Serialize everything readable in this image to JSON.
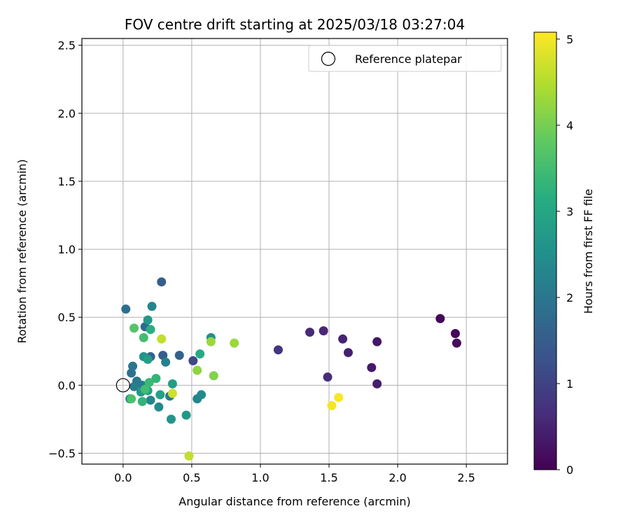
{
  "chart_data": {
    "type": "scatter",
    "title": "FOV centre drift starting at 2025/03/18 03:27:04",
    "xlabel": "Angular distance from reference (arcmin)",
    "ylabel": "Rotation from reference (arcmin)",
    "xlim": [
      -0.3,
      2.8
    ],
    "ylim": [
      -0.58,
      2.55
    ],
    "xticks": [
      "0.0",
      "0.5",
      "1.0",
      "1.5",
      "2.0",
      "2.5"
    ],
    "yticks": [
      "−0.5",
      "0.0",
      "0.5",
      "1.0",
      "1.5",
      "2.0",
      "2.5"
    ],
    "grid": true,
    "legend": {
      "placement": "top-right",
      "entries": [
        "Reference platepar"
      ]
    },
    "reference_point": {
      "x": 0.0,
      "y": 0.0
    },
    "colorbar": {
      "label": "Hours from first FF file",
      "colormap": "viridis",
      "range": [
        0,
        5.08
      ],
      "ticks": [
        "0",
        "1",
        "2",
        "3",
        "4",
        "5"
      ]
    },
    "points": [
      {
        "x": 2.31,
        "y": 0.49,
        "hours": 0.05
      },
      {
        "x": 2.42,
        "y": 0.38,
        "hours": 0.1
      },
      {
        "x": 2.43,
        "y": 0.31,
        "hours": 0.15
      },
      {
        "x": 1.85,
        "y": 0.32,
        "hours": 0.3
      },
      {
        "x": 1.81,
        "y": 0.13,
        "hours": 0.35
      },
      {
        "x": 1.85,
        "y": 0.01,
        "hours": 0.4
      },
      {
        "x": 1.64,
        "y": 0.24,
        "hours": 0.45
      },
      {
        "x": 1.6,
        "y": 0.34,
        "hours": 0.5
      },
      {
        "x": 1.46,
        "y": 0.4,
        "hours": 0.55
      },
      {
        "x": 1.36,
        "y": 0.39,
        "hours": 0.6
      },
      {
        "x": 1.49,
        "y": 0.06,
        "hours": 0.65
      },
      {
        "x": 1.13,
        "y": 0.26,
        "hours": 0.75
      },
      {
        "x": 0.51,
        "y": 0.18,
        "hours": 1.1
      },
      {
        "x": 0.28,
        "y": 0.76,
        "hours": 1.5
      },
      {
        "x": 0.41,
        "y": 0.22,
        "hours": 1.6
      },
      {
        "x": 0.29,
        "y": 0.22,
        "hours": 1.5
      },
      {
        "x": 0.2,
        "y": 0.21,
        "hours": 1.6
      },
      {
        "x": 0.16,
        "y": 0.43,
        "hours": 1.7
      },
      {
        "x": 0.02,
        "y": 0.56,
        "hours": 1.8
      },
      {
        "x": 0.06,
        "y": 0.09,
        "hours": 1.9
      },
      {
        "x": 0.07,
        "y": 0.14,
        "hours": 2.0
      },
      {
        "x": 0.1,
        "y": 0.03,
        "hours": 2.0
      },
      {
        "x": 0.08,
        "y": -0.01,
        "hours": 2.1
      },
      {
        "x": 0.05,
        "y": -0.1,
        "hours": 2.2
      },
      {
        "x": 0.14,
        "y": 0.0,
        "hours": 2.1
      },
      {
        "x": 0.2,
        "y": -0.11,
        "hours": 2.3
      },
      {
        "x": 0.26,
        "y": -0.16,
        "hours": 2.4
      },
      {
        "x": 0.21,
        "y": 0.58,
        "hours": 2.3
      },
      {
        "x": 0.31,
        "y": 0.17,
        "hours": 2.2
      },
      {
        "x": 0.34,
        "y": -0.08,
        "hours": 2.1
      },
      {
        "x": 0.54,
        "y": -0.1,
        "hours": 2.3
      },
      {
        "x": 0.57,
        "y": -0.07,
        "hours": 2.4
      },
      {
        "x": 0.64,
        "y": 0.35,
        "hours": 2.5
      },
      {
        "x": 0.15,
        "y": 0.21,
        "hours": 2.6
      },
      {
        "x": 0.18,
        "y": 0.48,
        "hours": 2.7
      },
      {
        "x": 0.18,
        "y": 0.19,
        "hours": 2.8
      },
      {
        "x": 0.13,
        "y": -0.05,
        "hours": 2.7
      },
      {
        "x": 0.18,
        "y": -0.04,
        "hours": 2.9
      },
      {
        "x": 0.36,
        "y": 0.01,
        "hours": 2.8
      },
      {
        "x": 0.35,
        "y": -0.25,
        "hours": 2.6
      },
      {
        "x": 0.46,
        "y": -0.22,
        "hours": 2.7
      },
      {
        "x": 0.27,
        "y": -0.07,
        "hours": 2.9
      },
      {
        "x": 0.56,
        "y": 0.23,
        "hours": 3.1
      },
      {
        "x": 0.2,
        "y": 0.41,
        "hours": 3.2
      },
      {
        "x": 0.24,
        "y": 0.05,
        "hours": 3.3
      },
      {
        "x": 0.14,
        "y": -0.12,
        "hours": 3.3
      },
      {
        "x": 0.19,
        "y": 0.02,
        "hours": 3.4
      },
      {
        "x": 0.16,
        "y": -0.03,
        "hours": 3.5
      },
      {
        "x": 0.15,
        "y": 0.35,
        "hours": 3.5
      },
      {
        "x": 0.06,
        "y": -0.1,
        "hours": 3.6
      },
      {
        "x": 0.08,
        "y": 0.42,
        "hours": 3.7
      },
      {
        "x": 0.66,
        "y": 0.07,
        "hours": 4.1
      },
      {
        "x": 0.54,
        "y": 0.11,
        "hours": 4.2
      },
      {
        "x": 0.64,
        "y": 0.32,
        "hours": 4.3
      },
      {
        "x": 0.81,
        "y": 0.31,
        "hours": 4.3
      },
      {
        "x": 0.28,
        "y": 0.34,
        "hours": 4.6
      },
      {
        "x": 0.36,
        "y": -0.06,
        "hours": 4.7
      },
      {
        "x": 0.48,
        "y": -0.52,
        "hours": 4.6
      },
      {
        "x": 1.52,
        "y": -0.15,
        "hours": 5.0
      },
      {
        "x": 1.57,
        "y": -0.09,
        "hours": 5.05
      }
    ]
  }
}
